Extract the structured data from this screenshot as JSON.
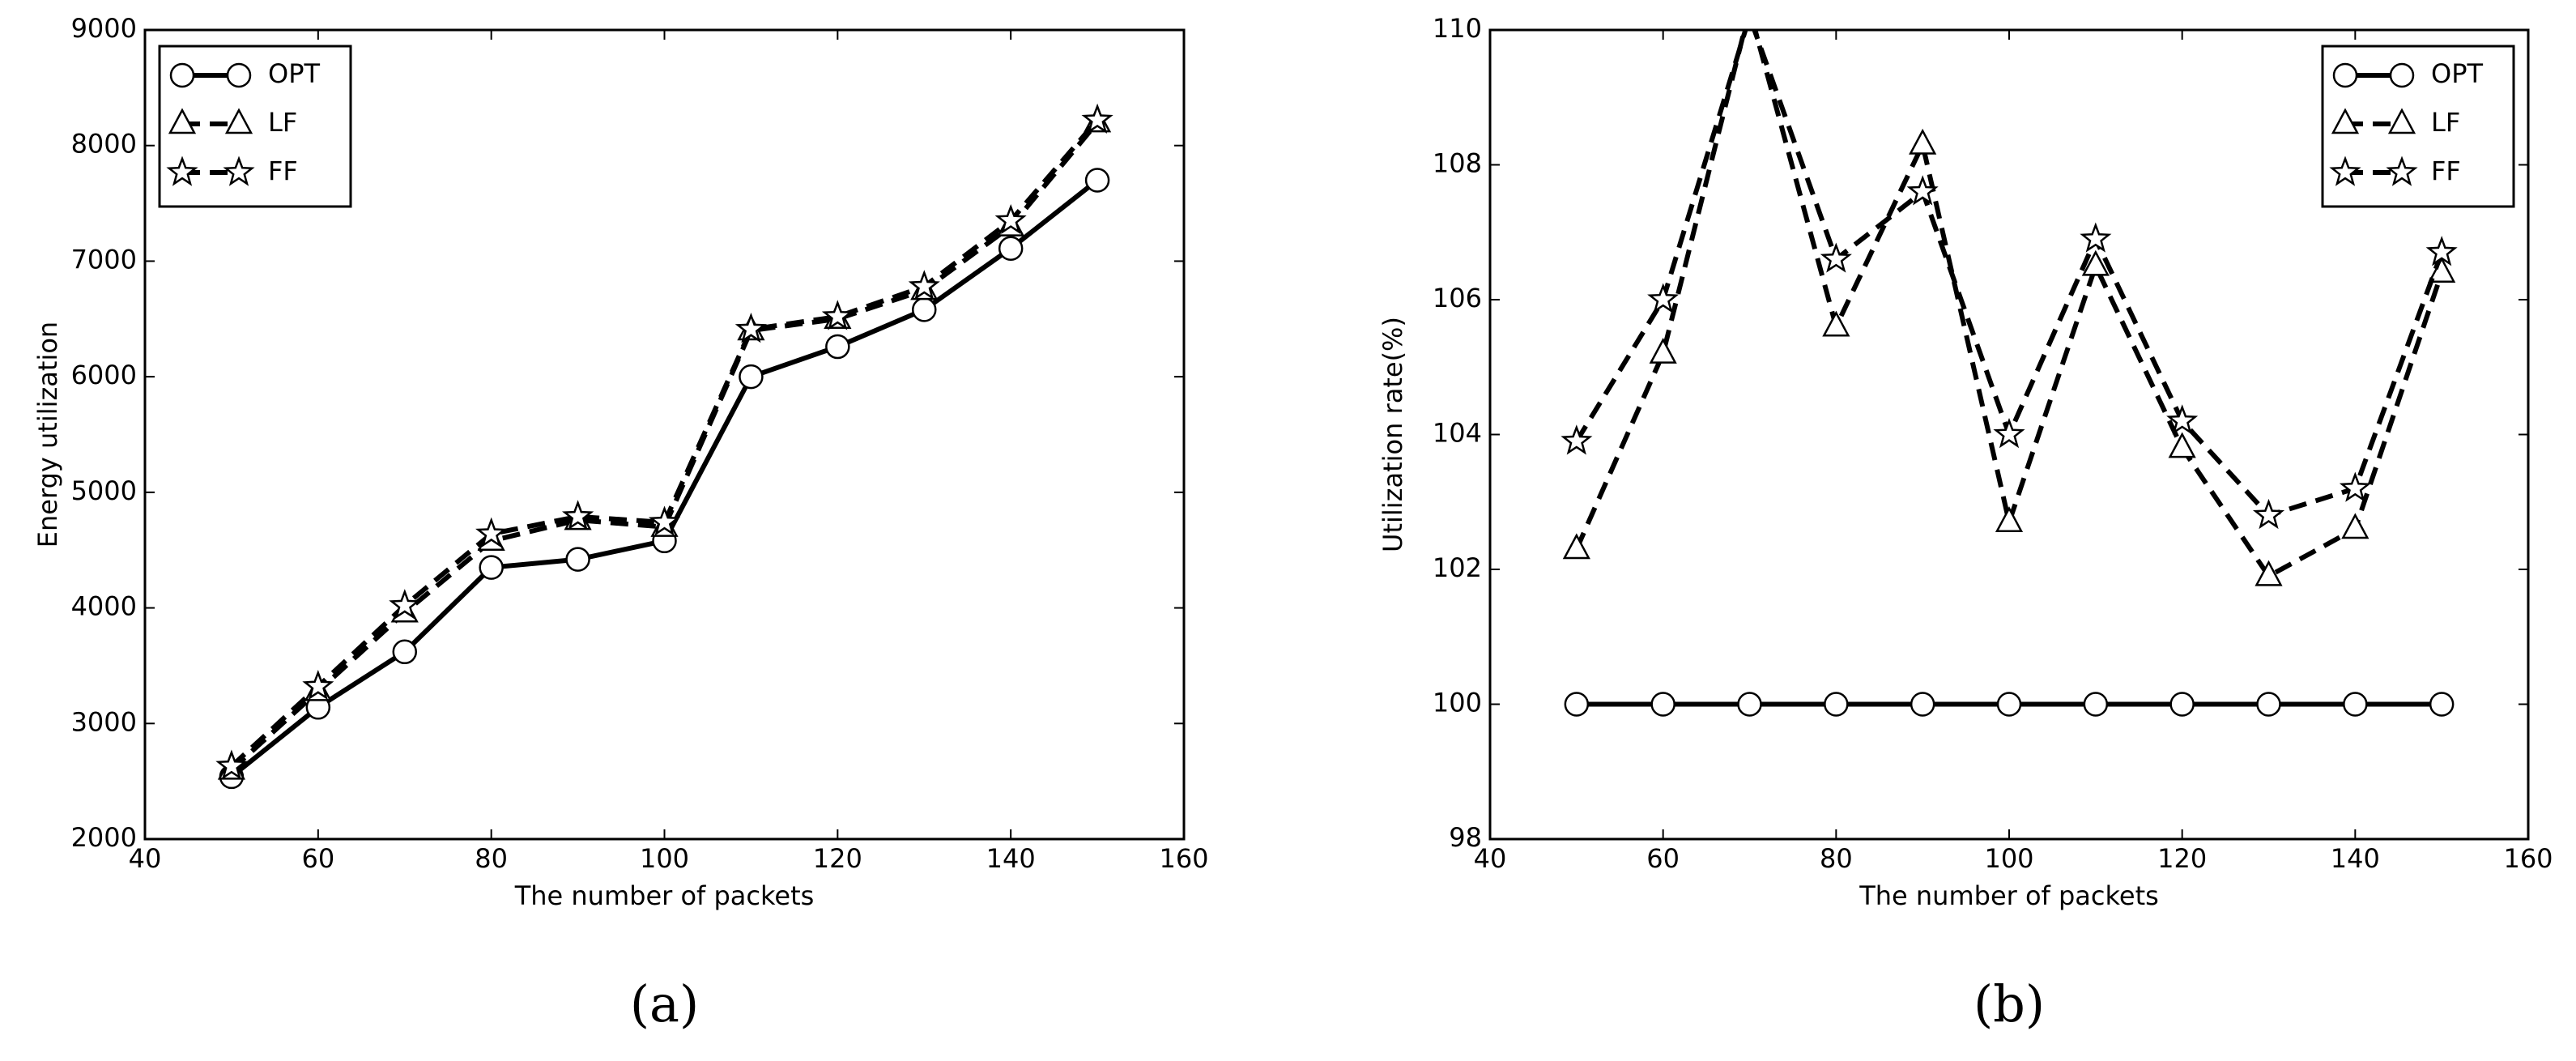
{
  "chart_data": [
    {
      "type": "line",
      "caption": "(a)",
      "xlabel": "The number of packets",
      "ylabel": "Energy utilization",
      "x": [
        50,
        60,
        70,
        80,
        90,
        100,
        110,
        120,
        130,
        140,
        150
      ],
      "xlim": [
        40,
        160
      ],
      "xticks": [
        40,
        60,
        80,
        100,
        120,
        140,
        160
      ],
      "ylim": [
        2000,
        9000
      ],
      "yticks": [
        2000,
        3000,
        4000,
        5000,
        6000,
        7000,
        8000,
        9000
      ],
      "legend": "upper left",
      "series": [
        {
          "name": "OPT",
          "color": "#000000",
          "marker": "circle",
          "dash": false,
          "values": [
            2540,
            3140,
            3620,
            4350,
            4420,
            4580,
            6000,
            6260,
            6580,
            7110,
            7700
          ]
        },
        {
          "name": "LF",
          "color": "#000000",
          "marker": "triangle",
          "dash": true,
          "values": [
            2600,
            3280,
            3960,
            4580,
            4760,
            4700,
            6400,
            6500,
            6750,
            7300,
            8200
          ]
        },
        {
          "name": "FF",
          "color": "#000000",
          "marker": "star",
          "dash": true,
          "values": [
            2630,
            3320,
            4020,
            4640,
            4790,
            4740,
            6410,
            6520,
            6780,
            7350,
            8220
          ]
        }
      ]
    },
    {
      "type": "line",
      "caption": "(b)",
      "xlabel": "The number of packets",
      "ylabel": "Utilization rate(%)",
      "x": [
        50,
        60,
        70,
        80,
        90,
        100,
        110,
        120,
        130,
        140,
        150
      ],
      "xlim": [
        40,
        160
      ],
      "xticks": [
        40,
        60,
        80,
        100,
        120,
        140,
        160
      ],
      "ylim": [
        98,
        110
      ],
      "yticks": [
        98,
        100,
        102,
        104,
        106,
        108,
        110
      ],
      "legend": "upper right",
      "series": [
        {
          "name": "OPT",
          "color": "#000000",
          "marker": "circle",
          "dash": false,
          "values": [
            100,
            100,
            100,
            100,
            100,
            100,
            100,
            100,
            100,
            100,
            100
          ]
        },
        {
          "name": "LF",
          "color": "#000000",
          "marker": "triangle",
          "dash": true,
          "values": [
            102.3,
            105.2,
            110.3,
            105.6,
            108.3,
            102.7,
            106.5,
            103.8,
            101.9,
            102.6,
            106.4
          ]
        },
        {
          "name": "FF",
          "color": "#000000",
          "marker": "star",
          "dash": true,
          "values": [
            103.9,
            106.0,
            110.2,
            106.6,
            107.6,
            104.0,
            106.9,
            104.2,
            102.8,
            103.2,
            106.7
          ]
        }
      ]
    }
  ]
}
